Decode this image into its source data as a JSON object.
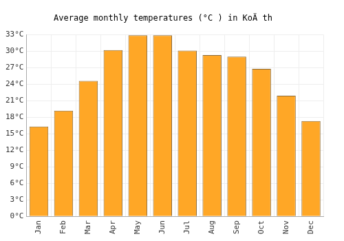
{
  "chart_data": {
    "type": "bar",
    "title": "Average monthly temperatures (°C ) in KoÄ th",
    "categories": [
      "Jan",
      "Feb",
      "Mar",
      "Apr",
      "May",
      "Jun",
      "Jul",
      "Aug",
      "Sep",
      "Oct",
      "Nov",
      "Dec"
    ],
    "values": [
      16.3,
      19.2,
      24.6,
      30.2,
      32.9,
      32.9,
      30.1,
      29.3,
      29.0,
      26.8,
      21.9,
      17.3
    ],
    "color": "#ffa726",
    "ylim": [
      0,
      33
    ],
    "yticks": [
      {
        "value": 0,
        "label": "0°C"
      },
      {
        "value": 3,
        "label": "3°C"
      },
      {
        "value": 6,
        "label": "6°C"
      },
      {
        "value": 9,
        "label": "9°C"
      },
      {
        "value": 12,
        "label": "12°C"
      },
      {
        "value": 15,
        "label": "15°C"
      },
      {
        "value": 18,
        "label": "18°C"
      },
      {
        "value": 21,
        "label": "21°C"
      },
      {
        "value": 24,
        "label": "24°C"
      },
      {
        "value": 27,
        "label": "27°C"
      },
      {
        "value": 30,
        "label": "30°C"
      },
      {
        "value": 33,
        "label": "33°C"
      }
    ],
    "grid": true
  }
}
